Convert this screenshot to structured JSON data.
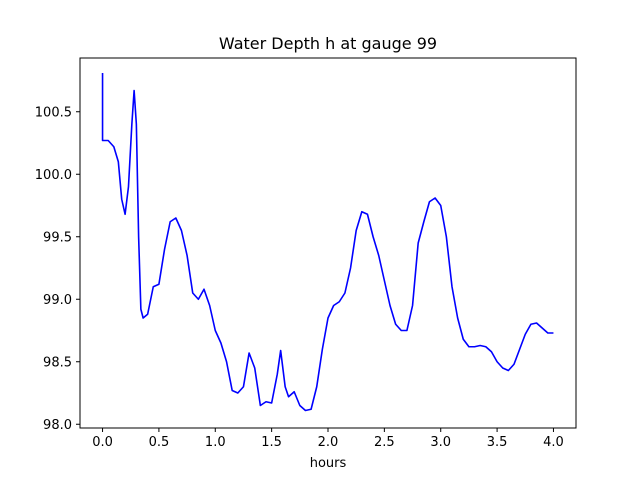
{
  "chart_data": {
    "type": "line",
    "title": "Water Depth h at gauge 99",
    "xlabel": "hours",
    "ylabel": "",
    "xlim": [
      -0.2,
      4.2
    ],
    "ylim": [
      97.97,
      100.93
    ],
    "xticks": [
      0.0,
      0.5,
      1.0,
      1.5,
      2.0,
      2.5,
      3.0,
      3.5,
      4.0
    ],
    "xtick_labels": [
      "0.0",
      "0.5",
      "1.0",
      "1.5",
      "2.0",
      "2.5",
      "3.0",
      "3.5",
      "4.0"
    ],
    "yticks": [
      98.0,
      98.5,
      99.0,
      99.5,
      100.0,
      100.5
    ],
    "ytick_labels": [
      "98.0",
      "98.5",
      "99.0",
      "99.5",
      "100.0",
      "100.5"
    ],
    "grid": false,
    "series": [
      {
        "color": "#0000ff",
        "x": [
          0.0,
          0.0,
          0.0,
          0.05,
          0.1,
          0.14,
          0.17,
          0.2,
          0.23,
          0.26,
          0.28,
          0.3,
          0.32,
          0.34,
          0.36,
          0.4,
          0.45,
          0.5,
          0.55,
          0.6,
          0.65,
          0.7,
          0.75,
          0.8,
          0.85,
          0.9,
          0.95,
          1.0,
          1.05,
          1.1,
          1.15,
          1.2,
          1.25,
          1.3,
          1.35,
          1.4,
          1.45,
          1.5,
          1.55,
          1.58,
          1.62,
          1.65,
          1.7,
          1.75,
          1.8,
          1.85,
          1.9,
          1.95,
          2.0,
          2.05,
          2.1,
          2.15,
          2.2,
          2.25,
          2.3,
          2.35,
          2.4,
          2.45,
          2.5,
          2.55,
          2.6,
          2.65,
          2.7,
          2.75,
          2.8,
          2.85,
          2.9,
          2.95,
          3.0,
          3.05,
          3.1,
          3.15,
          3.2,
          3.25,
          3.3,
          3.35,
          3.4,
          3.45,
          3.5,
          3.55,
          3.6,
          3.65,
          3.7,
          3.75,
          3.8,
          3.85,
          3.9,
          3.95,
          4.0
        ],
        "y": [
          100.81,
          100.27,
          100.27,
          100.27,
          100.22,
          100.1,
          99.8,
          99.68,
          99.9,
          100.4,
          100.67,
          100.4,
          99.5,
          98.92,
          98.85,
          98.88,
          99.1,
          99.12,
          99.4,
          99.62,
          99.65,
          99.55,
          99.35,
          99.05,
          99.0,
          99.08,
          98.95,
          98.75,
          98.65,
          98.5,
          98.27,
          98.25,
          98.3,
          98.57,
          98.45,
          98.15,
          98.18,
          98.17,
          98.4,
          98.59,
          98.3,
          98.22,
          98.26,
          98.15,
          98.11,
          98.12,
          98.3,
          98.6,
          98.85,
          98.95,
          98.98,
          99.05,
          99.25,
          99.55,
          99.7,
          99.68,
          99.5,
          99.35,
          99.15,
          98.95,
          98.8,
          98.75,
          98.75,
          98.95,
          99.45,
          99.62,
          99.78,
          99.81,
          99.75,
          99.5,
          99.1,
          98.85,
          98.68,
          98.62,
          98.62,
          98.63,
          98.62,
          98.58,
          98.5,
          98.45,
          98.43,
          98.48,
          98.6,
          98.72,
          98.8,
          98.81,
          98.77,
          98.73,
          98.73
        ]
      }
    ]
  }
}
